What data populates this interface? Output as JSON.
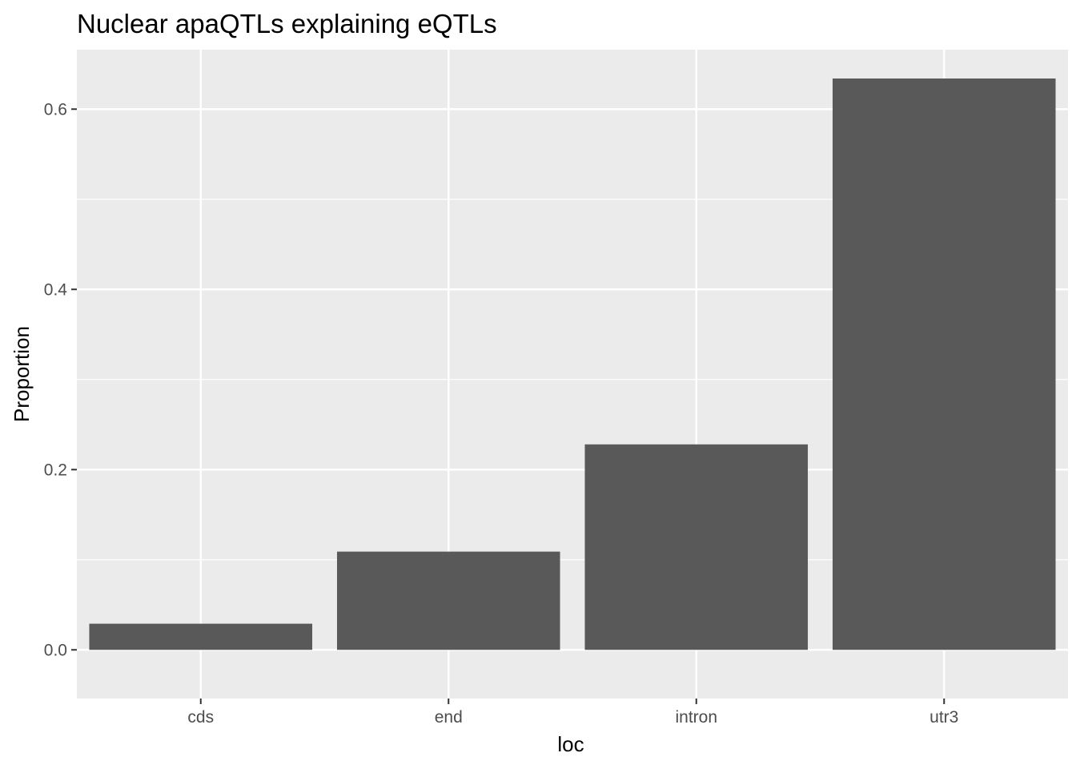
{
  "chart_data": {
    "type": "bar",
    "title": "Nuclear apaQTLs explaining eQTLs",
    "xlabel": "loc",
    "ylabel": "Proportion",
    "categories": [
      "cds",
      "end",
      "intron",
      "utr3"
    ],
    "values": [
      0.029,
      0.109,
      0.228,
      0.634
    ],
    "ylim": [
      -0.054,
      0.666
    ],
    "yticks": [
      0.0,
      0.2,
      0.4,
      0.6
    ],
    "ytick_labels": [
      "0.0",
      "0.2",
      "0.4",
      "0.6"
    ],
    "grid": true,
    "legend": "none",
    "colors": {
      "panel_background": "#ebebeb",
      "grid_line": "#ffffff",
      "bar_fill": "#595959",
      "tick_mark": "#333333"
    }
  }
}
